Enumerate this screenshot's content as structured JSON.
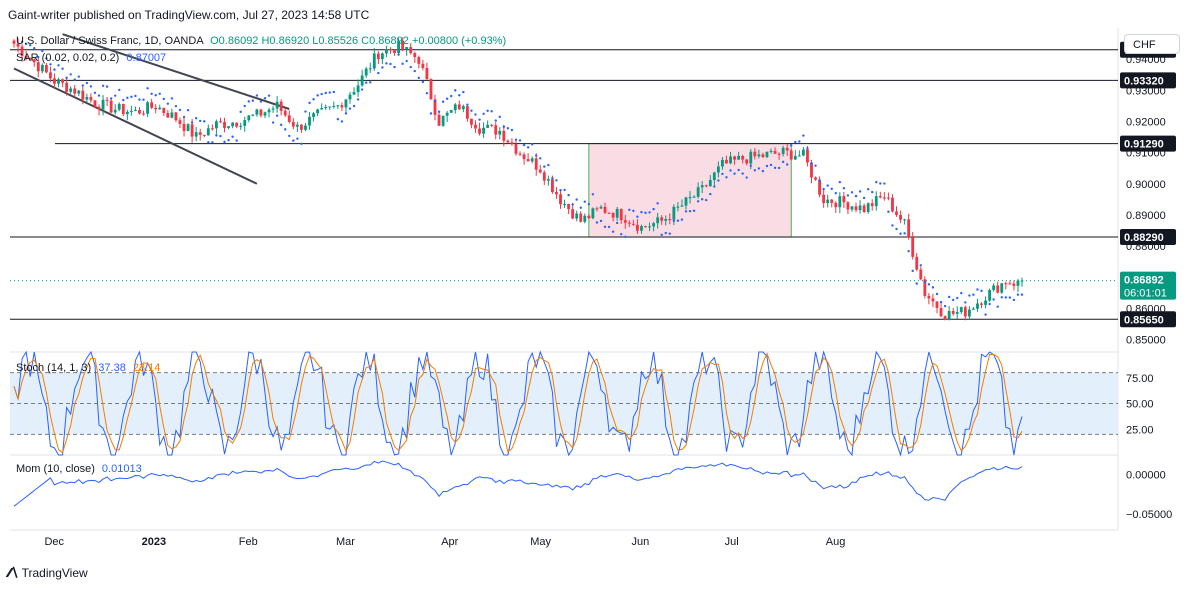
{
  "header": {
    "published": "Gaint-writer published on TradingView.com, Jul 27, 2023 14:58 UTC"
  },
  "symbol_button": "CHF",
  "legend": {
    "symbol": "U.S. Dollar / Swiss Franc, 1D, OANDA",
    "ohlc": "O0.86092 H0.86920 L0.85526 C0.86892 +0.00800 (+0.93%)",
    "sar_label": "SAR (0.02, 0.02, 0.2)",
    "sar_value": "0.87007",
    "stoch_label": "Stoch (14, 1, 3)",
    "stoch_k": "37.38",
    "stoch_d": "23.14",
    "mom_label": "Mom (10, close)",
    "mom_value": "0.01013"
  },
  "footer": {
    "brand": "TradingView"
  },
  "colors": {
    "up": "#089981",
    "down": "#f23645",
    "sar": "#2962ff",
    "k": "#2962ff",
    "d": "#f57c00",
    "zone_fill": "#fadce5",
    "zone_border": "#4caf50",
    "stoch_band": "#e3f0fb"
  },
  "chart_data": {
    "type": "candlestick",
    "title": "U.S. Dollar / Swiss Franc, 1D, OANDA",
    "ylim": [
      0.846,
      0.95
    ],
    "y_ticks": [
      "0.94000",
      "0.93000",
      "0.92000",
      "0.91000",
      "0.90000",
      "0.89000",
      "0.88000",
      "0.86000",
      "0.85000"
    ],
    "x_ticks": [
      "Dec",
      "2023",
      "Feb",
      "Mar",
      "Apr",
      "May",
      "Jun",
      "Jul",
      "Aug"
    ],
    "horizontal_levels": [
      0.943,
      0.9332,
      0.9129,
      0.8829,
      0.8565
    ],
    "level_labels": [
      "0.94300",
      "0.93320",
      "0.91290",
      "0.88290",
      "0.85650"
    ],
    "last_price": {
      "value": "0.86892",
      "countdown": "06:01:01"
    },
    "zone": {
      "price_high": 0.9129,
      "price_low": 0.8829,
      "date_from": "May 17",
      "date_to": "Jul 15"
    },
    "trendlines": [
      {
        "from": [
          0,
          0.937
        ],
        "to": [
          60,
          0.9
        ]
      },
      {
        "from": [
          12,
          0.948
        ],
        "to": [
          68,
          0.924
        ]
      }
    ],
    "anchor_closes": [
      [
        0,
        0.945
      ],
      [
        5,
        0.939
      ],
      [
        10,
        0.933
      ],
      [
        15,
        0.93
      ],
      [
        20,
        0.926
      ],
      [
        25,
        0.924
      ],
      [
        30,
        0.923
      ],
      [
        35,
        0.925
      ],
      [
        40,
        0.921
      ],
      [
        45,
        0.915
      ],
      [
        50,
        0.919
      ],
      [
        55,
        0.92
      ],
      [
        60,
        0.922
      ],
      [
        65,
        0.925
      ],
      [
        70,
        0.918
      ],
      [
        75,
        0.922
      ],
      [
        80,
        0.925
      ],
      [
        85,
        0.932
      ],
      [
        90,
        0.942
      ],
      [
        95,
        0.944
      ],
      [
        100,
        0.94
      ],
      [
        105,
        0.92
      ],
      [
        110,
        0.925
      ],
      [
        115,
        0.918
      ],
      [
        120,
        0.917
      ],
      [
        125,
        0.91
      ],
      [
        130,
        0.905
      ],
      [
        135,
        0.895
      ],
      [
        140,
        0.888
      ],
      [
        145,
        0.892
      ],
      [
        150,
        0.89
      ],
      [
        155,
        0.886
      ],
      [
        160,
        0.888
      ],
      [
        165,
        0.893
      ],
      [
        170,
        0.898
      ],
      [
        175,
        0.906
      ],
      [
        180,
        0.908
      ],
      [
        185,
        0.909
      ],
      [
        190,
        0.91
      ],
      [
        195,
        0.909
      ],
      [
        200,
        0.895
      ],
      [
        205,
        0.894
      ],
      [
        210,
        0.892
      ],
      [
        215,
        0.896
      ],
      [
        220,
        0.887
      ],
      [
        225,
        0.865
      ],
      [
        230,
        0.858
      ],
      [
        235,
        0.859
      ],
      [
        240,
        0.864
      ],
      [
        245,
        0.8689
      ]
    ],
    "stoch": {
      "k_last": 37.38,
      "d_last": 23.14,
      "levels": [
        80,
        50,
        20
      ],
      "ylim": [
        0,
        100
      ],
      "ticks": [
        "75.00",
        "50.00",
        "25.00"
      ]
    },
    "momentum": {
      "last": 0.01013,
      "ylim": [
        -0.07,
        0.025
      ],
      "ticks": [
        "0.00000",
        "−0.05000"
      ]
    }
  }
}
